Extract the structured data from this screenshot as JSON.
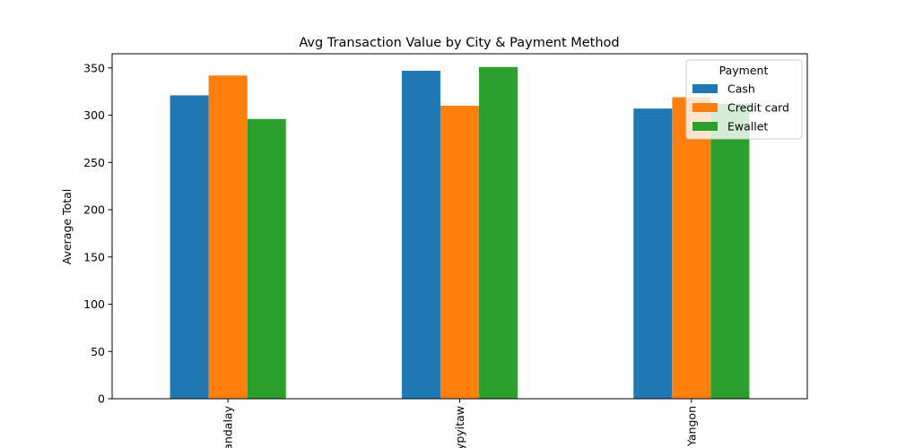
{
  "chart_data": {
    "type": "bar",
    "title": "Avg Transaction Value by City & Payment Method",
    "xlabel": "",
    "ylabel": "Average Total",
    "ylim": [
      0,
      365
    ],
    "yticks": [
      0,
      50,
      100,
      150,
      200,
      250,
      300,
      350
    ],
    "ytick_labels": [
      "0",
      "50",
      "100",
      "150",
      "200",
      "250",
      "300",
      "350"
    ],
    "categories": [
      "Mandalay",
      "Naypyitaw",
      "Yangon"
    ],
    "series": [
      {
        "name": "Cash",
        "color": "#1f77b4",
        "values": [
          321,
          347,
          307
        ]
      },
      {
        "name": "Credit card",
        "color": "#ff7f0e",
        "values": [
          342,
          310,
          319
        ]
      },
      {
        "name": "Ewallet",
        "color": "#2ca02c",
        "values": [
          296,
          351,
          312
        ]
      }
    ],
    "legend": {
      "title": "Payment",
      "position": "top-right"
    },
    "grid": false
  }
}
